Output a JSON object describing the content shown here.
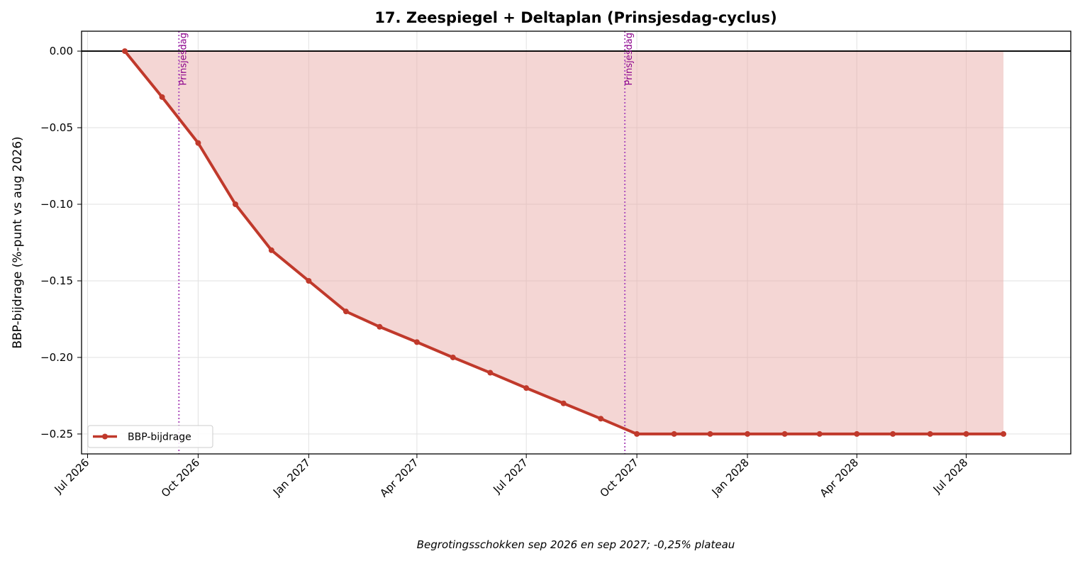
{
  "chart_data": {
    "type": "line",
    "title": "17. Zeespiegel + Deltaplan (Prinsjesdag-cyclus)",
    "xlabel": "",
    "ylabel": "BBP-bijdrage (%-punt vs aug 2026)",
    "caption": "Begrotingsschokken sep 2026 en sep 2027; -0,25% plateau",
    "x_tick_labels": [
      "Jul 2026",
      "Oct 2026",
      "Jan 2027",
      "Apr 2027",
      "Jul 2027",
      "Oct 2027",
      "Jan 2028",
      "Apr 2028",
      "Jul 2028"
    ],
    "y_tick_labels": [
      "0.00",
      "−0.05",
      "−0.10",
      "−0.15",
      "−0.20",
      "−0.25"
    ],
    "y_ticks": [
      0.0,
      -0.05,
      -0.1,
      -0.15,
      -0.2,
      -0.25
    ],
    "xlim": [
      "2026-06-26",
      "2028-09-26"
    ],
    "ylim": [
      -0.263,
      0.013
    ],
    "grid": true,
    "legend": "lower-left",
    "fill_to_zero": true,
    "zero_line": true,
    "colors": {
      "line": "#c0392b",
      "fill": "#e8a9a5",
      "event": "#b45cc0",
      "event_text": "#8b008b",
      "grid": "#e2e2e2"
    },
    "events": [
      {
        "date": "2026-09-15",
        "label": "Prinsjesdag"
      },
      {
        "date": "2027-09-21",
        "label": "Prinsjesdag"
      }
    ],
    "series": [
      {
        "name": "BBP-bijdrage",
        "x": [
          "2026-08-01",
          "2026-09-01",
          "2026-10-01",
          "2026-11-01",
          "2026-12-01",
          "2027-01-01",
          "2027-02-01",
          "2027-03-01",
          "2027-04-01",
          "2027-05-01",
          "2027-06-01",
          "2027-07-01",
          "2027-08-01",
          "2027-09-01",
          "2027-10-01",
          "2027-11-01",
          "2027-12-01",
          "2028-01-01",
          "2028-02-01",
          "2028-03-01",
          "2028-04-01",
          "2028-05-01",
          "2028-06-01",
          "2028-07-01",
          "2028-08-01"
        ],
        "y": [
          0.0,
          -0.03,
          -0.06,
          -0.1,
          -0.13,
          -0.15,
          -0.17,
          -0.18,
          -0.19,
          -0.2,
          -0.21,
          -0.22,
          -0.23,
          -0.24,
          -0.25,
          -0.25,
          -0.25,
          -0.25,
          -0.25,
          -0.25,
          -0.25,
          -0.25,
          -0.25,
          -0.25,
          -0.25
        ]
      }
    ]
  }
}
